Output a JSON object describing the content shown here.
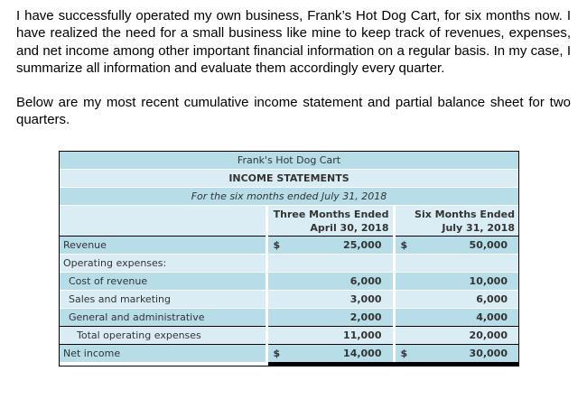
{
  "intro": {
    "paragraph1": "I have successfully operated my own business, Frank’s Hot Dog Cart, for six months now. I have realized the need for a small business like mine to keep track of revenues, expenses, and net income among other important financial information on a regular basis. In my case, I summarize all information and evaluate them accordingly every quarter.",
    "paragraph2": "Below are my most recent cumulative income statement and partial balance sheet for two quarters."
  },
  "statement": {
    "company": "Frank's Hot Dog Cart",
    "title": "INCOME STATEMENTS",
    "period": "For the six months ended July 31, 2018",
    "columns": [
      {
        "line1": "Three Months Ended",
        "line2": "April 30, 2018"
      },
      {
        "line1": "Six Months Ended",
        "line2": "July 31, 2018"
      }
    ],
    "rows": [
      {
        "label": "Revenue",
        "cur": "$",
        "v1": "25,000",
        "v2": "50,000"
      },
      {
        "label": "Operating expenses:",
        "v1": "",
        "v2": ""
      },
      {
        "label": "Cost of revenue",
        "v1": "6,000",
        "v2": "10,000"
      },
      {
        "label": "Sales and marketing",
        "v1": "3,000",
        "v2": "6,000"
      },
      {
        "label": "General and administrative",
        "v1": "2,000",
        "v2": "4,000"
      },
      {
        "label": "Total operating expenses",
        "v1": "11,000",
        "v2": "20,000"
      },
      {
        "label": "Net income",
        "cur": "$",
        "v1": "14,000",
        "v2": "30,000"
      }
    ]
  },
  "colors": {
    "row_dark": "#b7dde9",
    "row_light": "#daedf5",
    "table_text": "#333333",
    "rule": "#000000"
  }
}
